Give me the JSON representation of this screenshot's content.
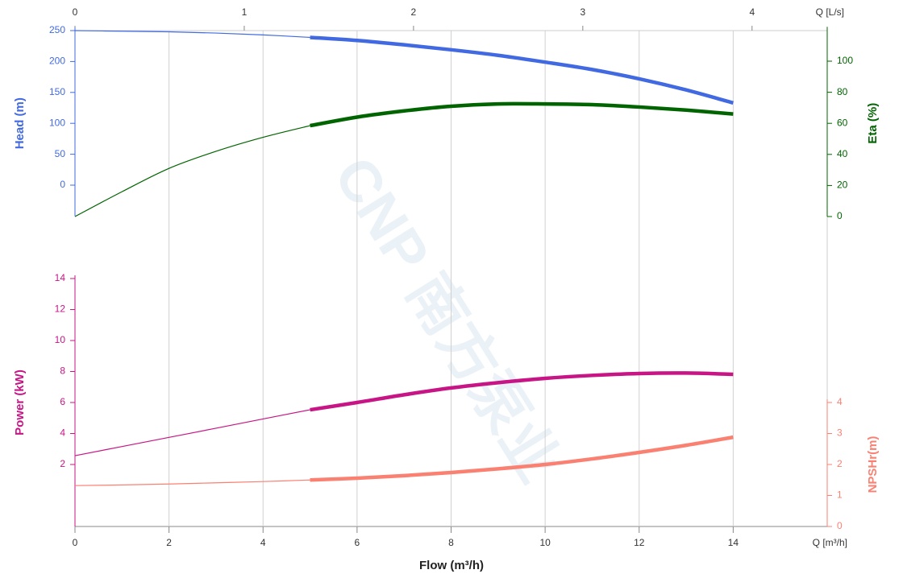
{
  "chart_data": {
    "type": "line",
    "xlabel": "Flow (m³/h)",
    "xunit": "Q [m³/h]",
    "x": [
      0,
      1,
      2,
      3,
      4,
      5,
      6,
      7,
      8,
      9,
      10,
      11,
      12,
      13,
      14
    ],
    "xlim": [
      0,
      16
    ],
    "xticks": [
      0,
      2,
      4,
      6,
      8,
      10,
      12,
      14
    ],
    "x2unit": "Q [L/s]",
    "x2lim": [
      0,
      4.444
    ],
    "x2ticks": [
      0,
      1,
      2,
      3,
      4
    ],
    "duty_range": [
      5,
      14
    ],
    "grid": true,
    "watermark": "CNP 南方泵业",
    "axes": {
      "head": {
        "label": "Head (m)",
        "side": "left",
        "ylim": [
          -50,
          250
        ],
        "yticks": [
          0,
          50,
          100,
          150,
          200,
          250
        ],
        "color": "#4169e1"
      },
      "eta": {
        "label": "Eta (%)",
        "side": "right",
        "ylim": [
          0,
          120
        ],
        "yticks": [
          0,
          20,
          40,
          60,
          80,
          100
        ],
        "color": "#006400"
      },
      "power": {
        "label": "Power (kW)",
        "side": "left",
        "ylim": [
          -2,
          14
        ],
        "yticks": [
          2,
          4,
          6,
          8,
          10,
          12,
          14
        ],
        "color": "#c71585"
      },
      "npsh": {
        "label": "NPSHr(m)",
        "side": "right",
        "ylim": [
          0,
          4
        ],
        "yticks": [
          0,
          1,
          2,
          3,
          4
        ],
        "color": "#fa8072"
      }
    },
    "series": [
      {
        "name": "Head",
        "axis": "head",
        "color": "#4169e1",
        "values": [
          250,
          249,
          248,
          246,
          243,
          239,
          234,
          227,
          219,
          210,
          199,
          187,
          172,
          154,
          133
        ]
      },
      {
        "name": "Eta",
        "axis": "eta",
        "color": "#006400",
        "values": [
          0,
          16,
          31,
          42,
          51,
          58.5,
          64,
          68,
          71,
          72.5,
          72.5,
          72,
          70.5,
          68.5,
          66
        ]
      },
      {
        "name": "Power",
        "axis": "power",
        "color": "#c71585",
        "values": [
          2.57,
          3.16,
          3.75,
          4.34,
          4.94,
          5.53,
          6.0,
          6.5,
          6.94,
          7.28,
          7.56,
          7.75,
          7.87,
          7.9,
          7.82
        ]
      },
      {
        "name": "NPSHr",
        "axis": "npsh",
        "color": "#fa8072",
        "values": [
          1.32,
          1.34,
          1.37,
          1.41,
          1.45,
          1.5,
          1.56,
          1.64,
          1.74,
          1.86,
          2.0,
          2.18,
          2.39,
          2.62,
          2.88
        ]
      }
    ]
  }
}
